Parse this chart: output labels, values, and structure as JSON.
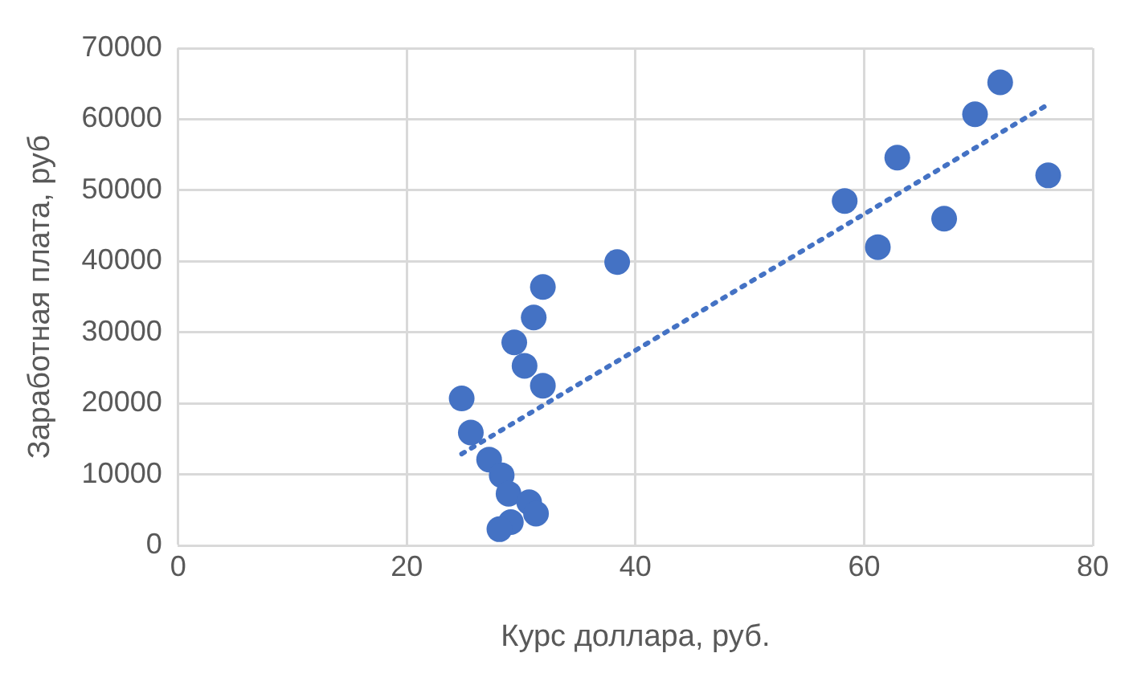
{
  "chart_data": {
    "type": "scatter",
    "xlabel": "Курс доллара, руб.",
    "ylabel": "Заработная плата, руб",
    "xlim": [
      0,
      80
    ],
    "xticks": [
      0,
      20,
      40,
      60,
      80
    ],
    "ylim": [
      0,
      70000
    ],
    "yticks": [
      0,
      10000,
      20000,
      30000,
      40000,
      50000,
      60000,
      70000
    ],
    "grid": true,
    "legend": false,
    "marker": "circle",
    "series": [
      {
        "color": "#4472c4",
        "x": [
          24.8,
          25.6,
          27.2,
          28.3,
          28.9,
          30.7,
          31.3,
          29.1,
          28.1,
          29.4,
          30.3,
          31.9,
          31.1,
          31.9,
          38.4,
          58.3,
          61.2,
          62.9,
          67.0,
          69.7,
          71.9,
          76.1
        ],
        "values": [
          20700,
          15900,
          12100,
          9900,
          7300,
          6100,
          4500,
          3300,
          2300,
          28600,
          25300,
          22500,
          32100,
          36400,
          39900,
          48500,
          42000,
          54600,
          46000,
          60700,
          65200,
          52100
        ]
      },
      {
        "type": "line",
        "line_style": "dotted",
        "marker": "none",
        "color": "#4472c4",
        "x": [
          24.8,
          75.9
        ],
        "values": [
          12900,
          61900
        ]
      }
    ]
  }
}
